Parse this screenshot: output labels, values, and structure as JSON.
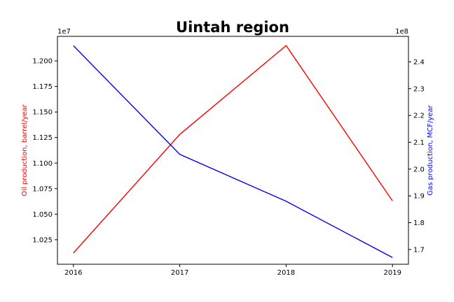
{
  "chart_data": {
    "type": "line",
    "title": "Uintah region",
    "x": [
      2016,
      2017,
      2018,
      2019
    ],
    "x_tick_labels": [
      "2016",
      "2017",
      "2018",
      "2019"
    ],
    "xlim": [
      2015.85,
      2019.15
    ],
    "left_axis": {
      "label": "Oil production, barrel/year",
      "offset_label": "1e7",
      "color": "#ff0000",
      "ylim": [
        10.01,
        12.24
      ],
      "ticks": [
        10.25,
        10.5,
        10.75,
        11.0,
        11.25,
        11.5,
        11.75,
        12.0
      ],
      "tick_labels": [
        "1.025",
        "1.050",
        "1.075",
        "1.100",
        "1.125",
        "1.150",
        "1.175",
        "1.200"
      ]
    },
    "right_axis": {
      "label": "Gas production, MCF/year",
      "offset_label": "1e8",
      "color": "#0000ff",
      "ylim": [
        1.645,
        2.495
      ],
      "ticks": [
        1.7,
        1.8,
        1.9,
        2.0,
        2.1,
        2.2,
        2.3,
        2.4
      ],
      "tick_labels": [
        "1.7",
        "1.8",
        "1.9",
        "2.0",
        "2.1",
        "2.2",
        "2.3",
        "2.4"
      ]
    },
    "series": [
      {
        "axis": "left",
        "color": "#ff0000",
        "values": [
          10.12,
          11.28,
          12.15,
          10.63
        ]
      },
      {
        "axis": "right",
        "color": "#0000ff",
        "values": [
          2.46,
          2.055,
          1.88,
          1.67
        ]
      }
    ],
    "grid": false,
    "legend": "none"
  }
}
